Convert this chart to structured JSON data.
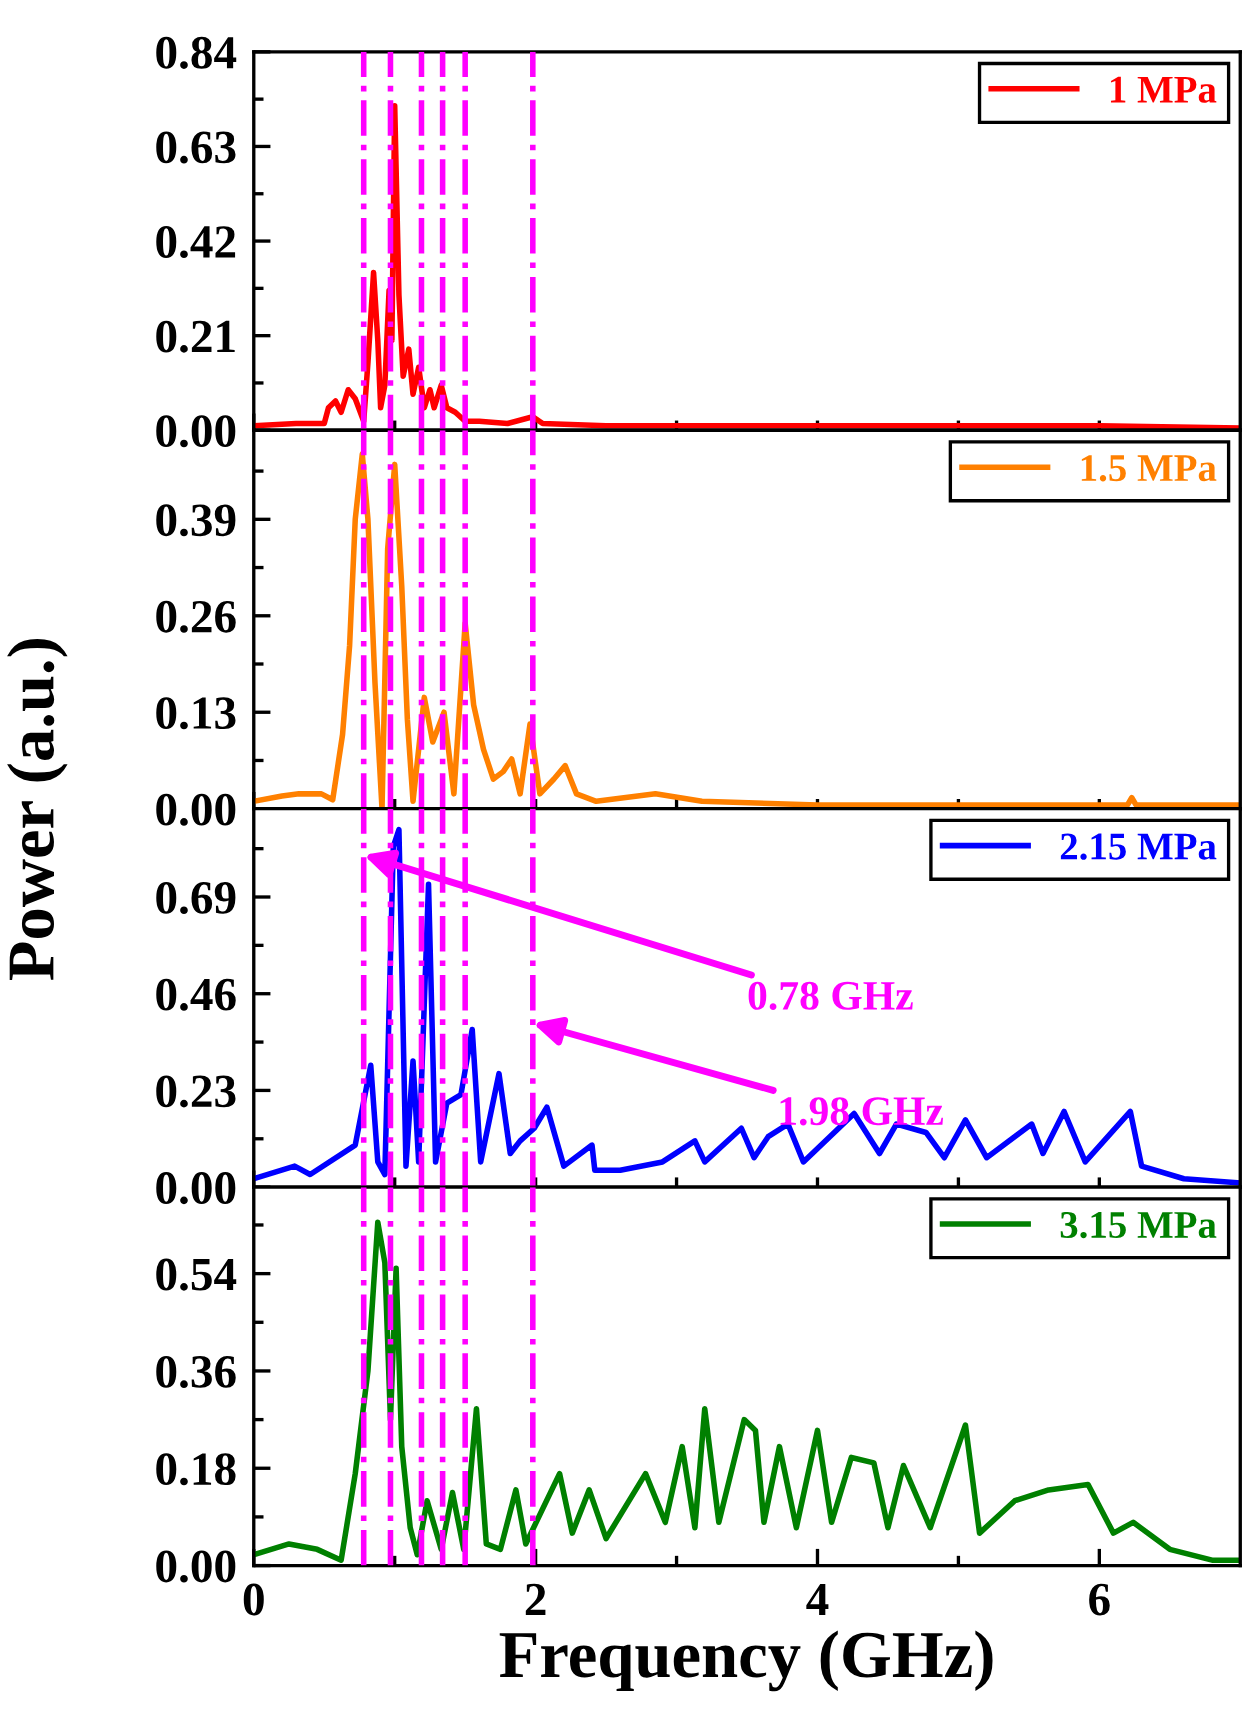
{
  "chart_data": [
    {
      "type": "line",
      "tick_labels": "y",
      "legend": "top right",
      "xlim": [
        0,
        7
      ],
      "xticks": [
        0,
        {
          "value": 1,
          "label": null
        },
        {
          "value": 2,
          "label": null
        },
        {
          "value": 3,
          "label": null
        },
        {
          "value": 4,
          "label": null
        },
        {
          "value": 5,
          "label": null
        },
        {
          "value": 6,
          "label": null
        }
      ],
      "ylim": [
        0,
        0.84
      ],
      "yticks": [
        {
          "value": 0,
          "label": "0.00"
        },
        {
          "value": 0.105,
          "label": null
        },
        0.21,
        {
          "value": 0.315,
          "label": null
        },
        0.42,
        {
          "value": 0.525,
          "label": null
        },
        0.63,
        {
          "value": 0.735,
          "label": null
        },
        0.84
      ],
      "x": [
        0,
        0.3,
        0.5,
        0.53,
        0.58,
        0.62,
        0.67,
        0.72,
        0.78,
        0.81,
        0.85,
        0.88,
        0.9,
        0.93,
        0.96,
        0.98,
        1.0,
        1.03,
        1.06,
        1.1,
        1.13,
        1.17,
        1.21,
        1.25,
        1.28,
        1.33,
        1.37,
        1.43,
        1.5,
        1.6,
        1.8,
        1.98,
        2.05,
        2.5,
        3,
        4,
        5,
        6,
        7
      ],
      "series": [
        {
          "name": "1 MPa",
          "color": "#ff0000",
          "values": [
            0.01,
            0.015,
            0.015,
            0.05,
            0.065,
            0.04,
            0.09,
            0.07,
            0.02,
            0.15,
            0.35,
            0.2,
            0.05,
            0.1,
            0.31,
            0.2,
            0.72,
            0.3,
            0.12,
            0.18,
            0.08,
            0.14,
            0.05,
            0.09,
            0.05,
            0.1,
            0.05,
            0.04,
            0.02,
            0.02,
            0.015,
            0.03,
            0.015,
            0.01,
            0.01,
            0.01,
            0.01,
            0.01,
            0.005
          ]
        }
      ],
      "ref_lines": [
        {
          "axis": "x",
          "value": 0.78,
          "color": "#ff00ff",
          "line_style": "dashdot"
        },
        {
          "axis": "x",
          "value": 0.97,
          "color": "#ff00ff",
          "line_style": "dashdot"
        },
        {
          "axis": "x",
          "value": 1.19,
          "color": "#ff00ff",
          "line_style": "dashdot"
        },
        {
          "axis": "x",
          "value": 1.34,
          "color": "#ff00ff",
          "line_style": "dashdot"
        },
        {
          "axis": "x",
          "value": 1.5,
          "color": "#ff00ff",
          "line_style": "dashdot"
        },
        {
          "axis": "x",
          "value": 1.98,
          "color": "#ff00ff",
          "line_style": "dashdot"
        }
      ]
    },
    {
      "type": "line",
      "tick_labels": "y",
      "legend": "top right",
      "ylabel": "Power (a.u.)",
      "xlim": [
        0,
        7
      ],
      "xticks": [
        0,
        {
          "value": 1,
          "label": null
        },
        {
          "value": 2,
          "label": null
        },
        {
          "value": 3,
          "label": null
        },
        {
          "value": 4,
          "label": null
        },
        {
          "value": 5,
          "label": null
        },
        {
          "value": 6,
          "label": null
        }
      ],
      "ylim": [
        0,
        0.51
      ],
      "yticks": [
        {
          "value": 0,
          "label": "0.00"
        },
        {
          "value": 0.065,
          "label": null
        },
        0.13,
        {
          "value": 0.195,
          "label": null
        },
        0.26,
        {
          "value": 0.325,
          "label": null
        },
        0.39,
        {
          "value": 0.455,
          "label": null
        }
      ],
      "x": [
        0,
        0.2,
        0.32,
        0.48,
        0.56,
        0.63,
        0.68,
        0.72,
        0.77,
        0.81,
        0.86,
        0.91,
        0.95,
        1.0,
        1.05,
        1.09,
        1.13,
        1.21,
        1.27,
        1.35,
        1.42,
        1.5,
        1.56,
        1.63,
        1.7,
        1.77,
        1.83,
        1.89,
        1.96,
        2.03,
        2.13,
        2.21,
        2.29,
        2.43,
        2.85,
        3.18,
        4,
        5,
        6.2,
        6.23,
        6.26,
        7
      ],
      "series": [
        {
          "name": "1.5 MPa",
          "color": "#ff8000",
          "values": [
            0.01,
            0.017,
            0.02,
            0.02,
            0.012,
            0.1,
            0.22,
            0.39,
            0.478,
            0.39,
            0.17,
            0.0,
            0.35,
            0.464,
            0.3,
            0.12,
            0.01,
            0.15,
            0.09,
            0.13,
            0.02,
            0.25,
            0.14,
            0.08,
            0.04,
            0.05,
            0.067,
            0.02,
            0.114,
            0.02,
            0.04,
            0.058,
            0.02,
            0.01,
            0.02,
            0.01,
            0.005,
            0.005,
            0.005,
            0.015,
            0.005,
            0.005
          ]
        }
      ],
      "ref_lines": [
        {
          "axis": "x",
          "value": 0.78,
          "color": "#ff00ff",
          "line_style": "dashdot"
        },
        {
          "axis": "x",
          "value": 0.97,
          "color": "#ff00ff",
          "line_style": "dashdot"
        },
        {
          "axis": "x",
          "value": 1.19,
          "color": "#ff00ff",
          "line_style": "dashdot"
        },
        {
          "axis": "x",
          "value": 1.34,
          "color": "#ff00ff",
          "line_style": "dashdot"
        },
        {
          "axis": "x",
          "value": 1.5,
          "color": "#ff00ff",
          "line_style": "dashdot"
        },
        {
          "axis": "x",
          "value": 1.98,
          "color": "#ff00ff",
          "line_style": "dashdot"
        }
      ]
    },
    {
      "type": "line",
      "tick_labels": "y",
      "legend": "top right",
      "xlim": [
        0,
        7
      ],
      "xticks": [
        0,
        {
          "value": 1,
          "label": null
        },
        {
          "value": 2,
          "label": null
        },
        {
          "value": 3,
          "label": null
        },
        {
          "value": 4,
          "label": null
        },
        {
          "value": 5,
          "label": null
        },
        {
          "value": 6,
          "label": null
        }
      ],
      "ylim": [
        0,
        0.9
      ],
      "yticks": [
        {
          "value": 0,
          "label": "0.00"
        },
        {
          "value": 0.115,
          "label": null
        },
        0.23,
        {
          "value": 0.345,
          "label": null
        },
        0.46,
        {
          "value": 0.575,
          "label": null
        },
        0.69,
        {
          "value": 0.805,
          "label": null
        }
      ],
      "x": [
        0,
        0.29,
        0.4,
        0.72,
        0.83,
        0.88,
        0.93,
        0.99,
        1.03,
        1.08,
        1.13,
        1.17,
        1.24,
        1.29,
        1.37,
        1.47,
        1.55,
        1.61,
        1.74,
        1.82,
        1.89,
        1.99,
        2.08,
        2.2,
        2.4,
        2.42,
        2.6,
        2.9,
        3.13,
        3.2,
        3.46,
        3.55,
        3.65,
        3.79,
        3.9,
        4.26,
        4.44,
        4.56,
        4.77,
        4.9,
        5.05,
        5.2,
        5.52,
        5.6,
        5.75,
        5.9,
        6.22,
        6.3,
        6.6,
        7
      ],
      "series": [
        {
          "name": "2.15 MPa",
          "color": "#0000ff",
          "values": [
            0.02,
            0.05,
            0.03,
            0.1,
            0.29,
            0.06,
            0.03,
            0.81,
            0.85,
            0.05,
            0.3,
            0.06,
            0.72,
            0.06,
            0.2,
            0.22,
            0.375,
            0.06,
            0.27,
            0.08,
            0.11,
            0.14,
            0.19,
            0.05,
            0.1,
            0.04,
            0.04,
            0.06,
            0.11,
            0.06,
            0.14,
            0.07,
            0.12,
            0.15,
            0.06,
            0.175,
            0.08,
            0.15,
            0.13,
            0.07,
            0.16,
            0.07,
            0.15,
            0.08,
            0.18,
            0.06,
            0.18,
            0.05,
            0.02,
            0.01
          ]
        }
      ],
      "ref_lines": [
        {
          "axis": "x",
          "value": 0.78,
          "color": "#ff00ff",
          "line_style": "dashdot"
        },
        {
          "axis": "x",
          "value": 0.97,
          "color": "#ff00ff",
          "line_style": "dashdot"
        },
        {
          "axis": "x",
          "value": 1.19,
          "color": "#ff00ff",
          "line_style": "dashdot"
        },
        {
          "axis": "x",
          "value": 1.34,
          "color": "#ff00ff",
          "line_style": "dashdot"
        },
        {
          "axis": "x",
          "value": 1.5,
          "color": "#ff00ff",
          "line_style": "dashdot"
        },
        {
          "axis": "x",
          "value": 1.98,
          "color": "#ff00ff",
          "line_style": "dashdot"
        }
      ],
      "annotations": [
        {
          "text": "0.78 GHz",
          "x": 0.78,
          "y": 0.79
        },
        {
          "text": "1.98 GHz",
          "x": 1.98,
          "y": 0.39
        }
      ]
    },
    {
      "type": "line",
      "legend": "top right",
      "xlabel": "Frequency (GHz)",
      "xlim": [
        0,
        7
      ],
      "xticks": [
        0,
        {
          "value": 1,
          "label": null
        },
        2,
        {
          "value": 3,
          "label": null
        },
        4,
        {
          "value": 5,
          "label": null
        },
        6
      ],
      "ylim": [
        0,
        0.7
      ],
      "yticks": [
        {
          "value": 0,
          "label": "0.00"
        },
        {
          "value": 0.09,
          "label": null
        },
        0.18,
        {
          "value": 0.27,
          "label": null
        },
        0.36,
        {
          "value": 0.45,
          "label": null
        },
        0.54,
        {
          "value": 0.63,
          "label": null
        }
      ],
      "x": [
        0,
        0.25,
        0.45,
        0.62,
        0.72,
        0.81,
        0.88,
        0.93,
        0.97,
        1.01,
        1.05,
        1.11,
        1.16,
        1.23,
        1.33,
        1.41,
        1.49,
        1.58,
        1.65,
        1.75,
        1.86,
        1.93,
        2.17,
        2.26,
        2.38,
        2.5,
        2.78,
        2.92,
        3.04,
        3.13,
        3.2,
        3.3,
        3.48,
        3.56,
        3.62,
        3.73,
        3.85,
        4.0,
        4.1,
        4.24,
        4.4,
        4.5,
        4.61,
        4.8,
        5.05,
        5.15,
        5.4,
        5.64,
        5.92,
        6.1,
        6.24,
        6.5,
        6.8,
        7
      ],
      "series": [
        {
          "name": "3.15 MPa",
          "color": "#008000",
          "values": [
            0.02,
            0.04,
            0.03,
            0.01,
            0.17,
            0.36,
            0.635,
            0.56,
            0.27,
            0.55,
            0.22,
            0.07,
            0.02,
            0.12,
            0.03,
            0.135,
            0.03,
            0.29,
            0.04,
            0.03,
            0.14,
            0.04,
            0.17,
            0.06,
            0.14,
            0.05,
            0.17,
            0.08,
            0.22,
            0.07,
            0.29,
            0.08,
            0.27,
            0.25,
            0.08,
            0.22,
            0.07,
            0.25,
            0.08,
            0.2,
            0.19,
            0.07,
            0.185,
            0.07,
            0.26,
            0.06,
            0.12,
            0.14,
            0.15,
            0.06,
            0.08,
            0.03,
            0.01,
            0.01
          ]
        }
      ],
      "ref_lines": [
        {
          "axis": "x",
          "value": 0.78,
          "color": "#ff00ff",
          "line_style": "dashdot"
        },
        {
          "axis": "x",
          "value": 0.97,
          "color": "#ff00ff",
          "line_style": "dashdot"
        },
        {
          "axis": "x",
          "value": 1.19,
          "color": "#ff00ff",
          "line_style": "dashdot"
        },
        {
          "axis": "x",
          "value": 1.34,
          "color": "#ff00ff",
          "line_style": "dashdot"
        },
        {
          "axis": "x",
          "value": 1.5,
          "color": "#ff00ff",
          "line_style": "dashdot"
        },
        {
          "axis": "x",
          "value": 1.98,
          "color": "#ff00ff",
          "line_style": "dashdot"
        }
      ]
    }
  ]
}
